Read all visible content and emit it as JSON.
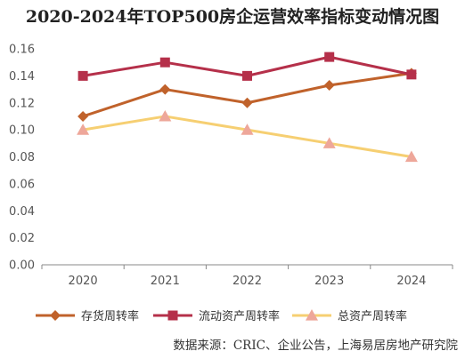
{
  "chart_data": {
    "type": "line",
    "title": "2020-2024年TOP500房企运营效率指标变动情况图",
    "categories": [
      "2020",
      "2021",
      "2022",
      "2023",
      "2024"
    ],
    "ylim": [
      0,
      0.16
    ],
    "yticks": [
      "0.00",
      "0.02",
      "0.04",
      "0.06",
      "0.08",
      "0.10",
      "0.12",
      "0.14",
      "0.16"
    ],
    "grid": false,
    "legend_position": "bottom",
    "series": [
      {
        "name": "存货周转率",
        "values": [
          0.11,
          0.13,
          0.12,
          0.133,
          0.142
        ],
        "color": "#c0622b",
        "marker": "diamond"
      },
      {
        "name": "流动资产周转率",
        "values": [
          0.14,
          0.15,
          0.14,
          0.154,
          0.141
        ],
        "color": "#b5304a",
        "marker": "square"
      },
      {
        "name": "总资产周转率",
        "values": [
          0.1,
          0.11,
          0.1,
          0.09,
          0.08
        ],
        "color": "#f6cf72",
        "marker": "triangle",
        "marker_color": "#eea79a"
      }
    ]
  },
  "source": "数据来源：CRIC、企业公告，上海易居房地产研究院"
}
